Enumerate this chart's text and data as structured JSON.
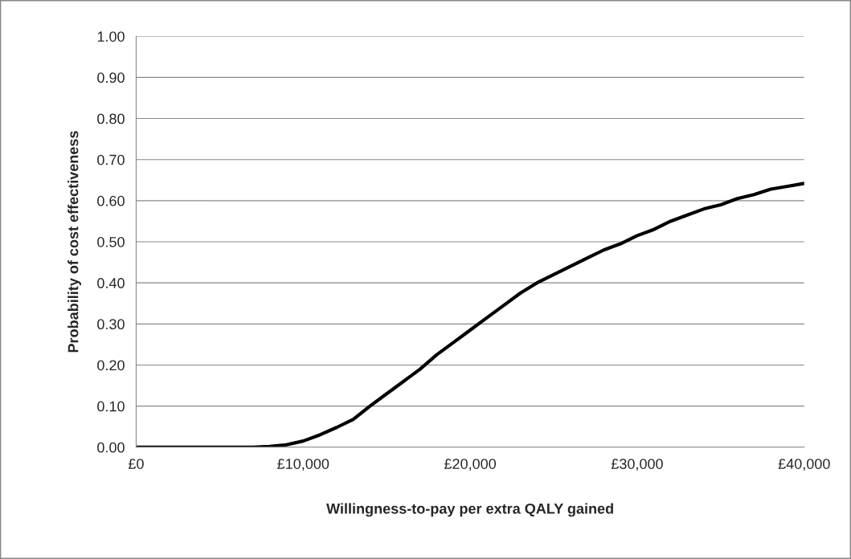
{
  "chart_data": {
    "type": "line",
    "xlabel": "Willingness-to-pay per extra QALY gained",
    "ylabel": "Probability of cost effectiveness",
    "x": [
      0,
      1000,
      2000,
      3000,
      4000,
      5000,
      6000,
      7000,
      8000,
      9000,
      10000,
      11000,
      12000,
      13000,
      14000,
      15000,
      16000,
      17000,
      18000,
      19000,
      20000,
      21000,
      22000,
      23000,
      24000,
      25000,
      26000,
      27000,
      28000,
      29000,
      30000,
      31000,
      32000,
      33000,
      34000,
      35000,
      36000,
      37000,
      38000,
      39000,
      40000
    ],
    "series": [
      {
        "color": "#000000",
        "values": [
          0,
          0,
          0,
          0,
          0,
          0,
          0,
          0,
          0.002,
          0.006,
          0.015,
          0.03,
          0.048,
          0.068,
          0.1,
          0.13,
          0.16,
          0.19,
          0.225,
          0.255,
          0.285,
          0.315,
          0.345,
          0.375,
          0.4,
          0.42,
          0.44,
          0.46,
          0.48,
          0.495,
          0.515,
          0.53,
          0.55,
          0.565,
          0.58,
          0.59,
          0.605,
          0.615,
          0.628,
          0.635,
          0.642
        ]
      }
    ],
    "xlim": [
      0,
      40000
    ],
    "xticks": [
      {
        "value": 0,
        "label": "£0"
      },
      {
        "value": 10000,
        "label": "£10,000"
      },
      {
        "value": 20000,
        "label": "£20,000"
      },
      {
        "value": 30000,
        "label": "£30,000"
      },
      {
        "value": 40000,
        "label": "£40,000"
      }
    ],
    "ylim": [
      0,
      1
    ],
    "yticks": [
      {
        "value": 0,
        "label": "0.00"
      },
      {
        "value": 0.1,
        "label": "0.10"
      },
      {
        "value": 0.2,
        "label": "0.20"
      },
      {
        "value": 0.3,
        "label": "0.30"
      },
      {
        "value": 0.4,
        "label": "0.40"
      },
      {
        "value": 0.5,
        "label": "0.50"
      },
      {
        "value": 0.6,
        "label": "0.60"
      },
      {
        "value": 0.7,
        "label": "0.70"
      },
      {
        "value": 0.8,
        "label": "0.80"
      },
      {
        "value": 0.9,
        "label": "0.90"
      },
      {
        "value": 1,
        "label": "1.00"
      }
    ],
    "grid": "y",
    "line_style": "solid",
    "marker": "none"
  }
}
